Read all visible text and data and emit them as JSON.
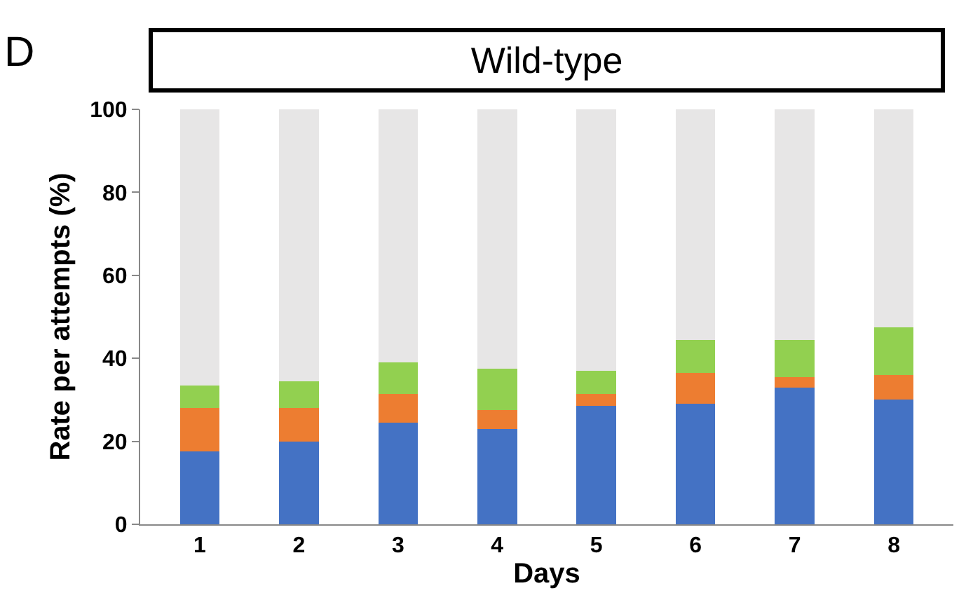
{
  "chart_data": {
    "type": "bar",
    "title": "Wild-type",
    "xlabel": "Days",
    "ylabel": "Rate per attempts (%)",
    "annotations": [
      "D"
    ],
    "categories": [
      "1",
      "2",
      "3",
      "4",
      "5",
      "6",
      "7",
      "8"
    ],
    "stacked": true,
    "series": [
      {
        "color": "#4472c4",
        "values": [
          17.5,
          20,
          24.5,
          23,
          28.5,
          29,
          33,
          30
        ]
      },
      {
        "color": "#ed7d31",
        "values": [
          10.5,
          8,
          7,
          4.5,
          3,
          7.5,
          2.5,
          6
        ]
      },
      {
        "color": "#92d050",
        "values": [
          5.5,
          6.5,
          7.5,
          10,
          5.5,
          8,
          9,
          11.5
        ]
      },
      {
        "color": "#e7e6e6",
        "values": [
          66.5,
          65.5,
          61,
          62.5,
          63,
          55.5,
          55.5,
          52.5
        ]
      }
    ],
    "ylim": [
      0,
      100
    ],
    "yticks": [
      0,
      20,
      40,
      60,
      80,
      100
    ]
  }
}
